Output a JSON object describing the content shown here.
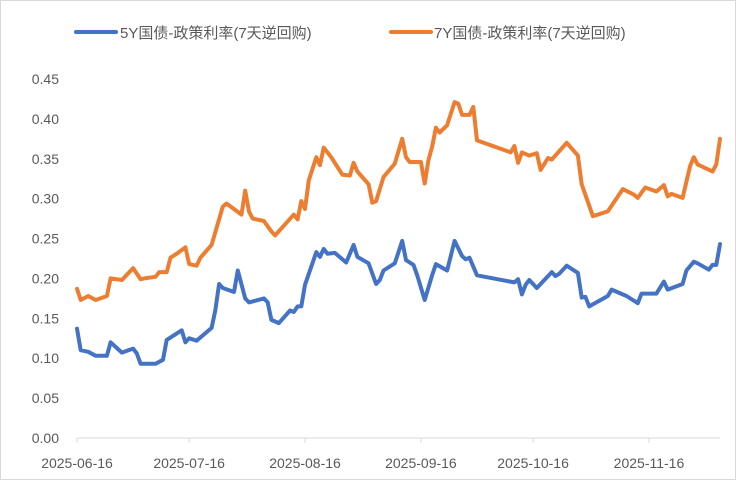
{
  "chart_data": {
    "type": "line",
    "title": "",
    "xlabel": "",
    "ylabel": "",
    "x_unit": "days since 2025-06-16",
    "x_start_date": "2025-06-16",
    "xlim": [
      0,
      172
    ],
    "ylim": [
      0,
      0.45
    ],
    "y_ticks": [
      "0.00",
      "0.05",
      "0.10",
      "0.15",
      "0.20",
      "0.25",
      "0.30",
      "0.35",
      "0.40",
      "0.45"
    ],
    "x_ticks": [
      {
        "day": 0,
        "label": "2025-06-16"
      },
      {
        "day": 30,
        "label": "2025-07-16"
      },
      {
        "day": 61,
        "label": "2025-08-16"
      },
      {
        "day": 92,
        "label": "2025-09-16"
      },
      {
        "day": 122,
        "label": "2025-10-16"
      },
      {
        "day": 153,
        "label": "2025-11-16"
      }
    ],
    "grid": false,
    "legend_position": "top",
    "series": [
      {
        "name": "5Y国债-政策利率(7天逆回购)",
        "color": "#4472C4",
        "x": [
          0,
          1,
          3,
          5,
          8,
          9,
          12,
          15,
          16,
          17,
          21,
          23,
          24,
          28,
          29,
          30,
          32,
          36,
          37,
          38,
          39,
          42,
          43,
          45,
          46,
          50,
          51,
          52,
          54,
          57,
          58,
          59,
          60,
          61,
          64,
          65,
          66,
          67,
          69,
          72,
          74,
          75,
          78,
          80,
          81,
          82,
          85,
          87,
          88,
          90,
          91,
          93,
          95,
          96,
          99,
          101,
          103,
          104,
          105,
          107,
          117,
          118,
          119,
          120,
          121,
          123,
          127,
          128,
          129,
          131,
          134,
          135,
          136,
          137,
          142,
          143,
          147,
          150,
          151,
          155,
          157,
          158,
          162,
          163,
          165,
          166,
          169,
          170,
          171,
          172
        ],
        "y": [
          0.137,
          0.11,
          0.108,
          0.103,
          0.103,
          0.12,
          0.107,
          0.112,
          0.106,
          0.093,
          0.093,
          0.098,
          0.123,
          0.135,
          0.12,
          0.125,
          0.122,
          0.138,
          0.16,
          0.193,
          0.188,
          0.183,
          0.21,
          0.175,
          0.17,
          0.175,
          0.17,
          0.148,
          0.144,
          0.16,
          0.158,
          0.165,
          0.165,
          0.192,
          0.233,
          0.227,
          0.237,
          0.231,
          0.232,
          0.22,
          0.242,
          0.227,
          0.219,
          0.193,
          0.198,
          0.21,
          0.219,
          0.247,
          0.223,
          0.217,
          0.204,
          0.173,
          0.204,
          0.218,
          0.21,
          0.247,
          0.228,
          0.224,
          0.226,
          0.204,
          0.195,
          0.199,
          0.18,
          0.192,
          0.198,
          0.188,
          0.208,
          0.203,
          0.206,
          0.216,
          0.207,
          0.176,
          0.177,
          0.165,
          0.178,
          0.186,
          0.178,
          0.169,
          0.181,
          0.181,
          0.196,
          0.186,
          0.193,
          0.21,
          0.221,
          0.219,
          0.211,
          0.217,
          0.217,
          0.243
        ]
      },
      {
        "name": "7Y国债-政策利率(7天逆回购)",
        "color": "#ED7D31",
        "x": [
          0,
          1,
          3,
          5,
          8,
          9,
          12,
          15,
          17,
          18,
          21,
          22,
          24,
          25,
          27,
          29,
          30,
          32,
          33,
          36,
          39,
          40,
          44,
          45,
          46,
          47,
          50,
          52,
          53,
          58,
          59,
          60,
          61,
          62,
          64,
          65,
          66,
          68,
          71,
          73,
          74,
          75,
          78,
          79,
          80,
          82,
          85,
          87,
          88,
          89,
          92,
          93,
          94,
          95,
          96,
          97,
          99,
          101,
          102,
          103,
          105,
          106,
          107,
          116,
          117,
          118,
          119,
          121,
          123,
          124,
          126,
          127,
          131,
          134,
          135,
          138,
          142,
          146,
          149,
          150,
          152,
          155,
          157,
          158,
          159,
          162,
          164,
          165,
          166,
          170,
          171,
          172
        ],
        "y": [
          0.187,
          0.173,
          0.178,
          0.173,
          0.178,
          0.2,
          0.198,
          0.213,
          0.199,
          0.2,
          0.202,
          0.208,
          0.208,
          0.226,
          0.232,
          0.239,
          0.218,
          0.216,
          0.226,
          0.242,
          0.29,
          0.294,
          0.28,
          0.31,
          0.284,
          0.275,
          0.272,
          0.259,
          0.254,
          0.28,
          0.274,
          0.297,
          0.287,
          0.323,
          0.352,
          0.342,
          0.364,
          0.352,
          0.33,
          0.329,
          0.345,
          0.334,
          0.318,
          0.295,
          0.297,
          0.327,
          0.344,
          0.375,
          0.352,
          0.346,
          0.346,
          0.319,
          0.348,
          0.365,
          0.389,
          0.383,
          0.392,
          0.421,
          0.419,
          0.405,
          0.405,
          0.415,
          0.373,
          0.358,
          0.366,
          0.345,
          0.358,
          0.354,
          0.357,
          0.336,
          0.351,
          0.349,
          0.37,
          0.354,
          0.318,
          0.278,
          0.284,
          0.312,
          0.305,
          0.301,
          0.314,
          0.309,
          0.317,
          0.303,
          0.306,
          0.301,
          0.341,
          0.352,
          0.343,
          0.334,
          0.343,
          0.375
        ]
      }
    ]
  }
}
